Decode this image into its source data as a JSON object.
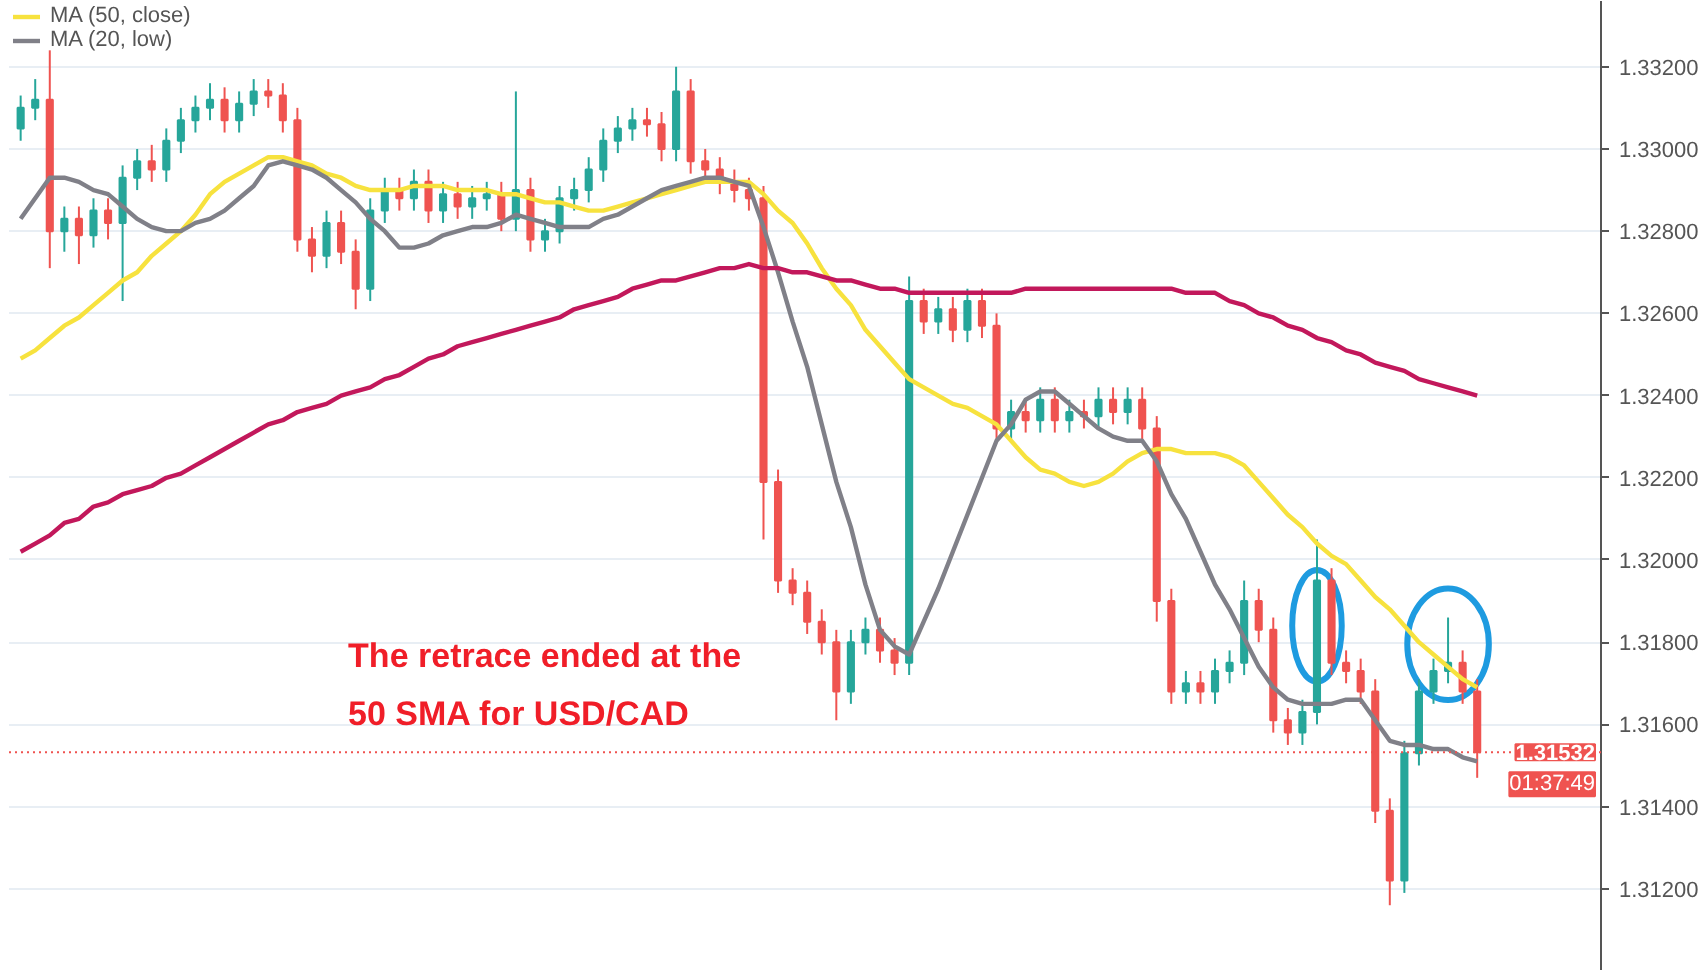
{
  "chart_data": {
    "type": "candlestick",
    "categories": [
      null,
      null,
      null,
      null,
      null,
      null,
      null,
      null,
      null,
      null,
      null,
      null,
      null,
      null,
      null,
      null,
      null,
      null,
      null,
      null,
      null,
      null,
      null,
      null,
      null,
      null,
      null,
      null,
      null,
      null,
      null,
      null,
      null,
      null,
      null,
      null,
      null,
      null,
      null,
      null,
      null,
      null,
      null,
      null,
      null,
      null,
      null,
      null,
      null,
      null,
      null,
      null,
      null,
      null,
      null,
      null,
      null,
      null,
      null,
      null,
      null,
      null,
      null,
      null,
      null,
      null,
      null,
      null,
      null,
      null,
      null,
      null,
      null,
      null,
      null,
      null,
      null,
      null,
      null,
      null,
      null,
      null,
      null,
      null,
      null,
      null,
      null,
      null,
      null,
      null,
      null,
      null,
      null,
      null,
      null,
      null,
      null,
      null,
      null,
      null,
      null
    ],
    "ohlc": [
      [
        1.3305,
        1.3313,
        1.3302,
        1.331
      ],
      [
        1.331,
        1.3317,
        1.3307,
        1.3312
      ],
      [
        1.3312,
        1.3324,
        1.3271,
        1.328
      ],
      [
        1.328,
        1.3286,
        1.3275,
        1.3283
      ],
      [
        1.3283,
        1.3286,
        1.3272,
        1.3279
      ],
      [
        1.3279,
        1.3288,
        1.3276,
        1.3285
      ],
      [
        1.3285,
        1.3288,
        1.3278,
        1.3282
      ],
      [
        1.3282,
        1.3296,
        1.3263,
        1.3293
      ],
      [
        1.3293,
        1.33,
        1.329,
        1.3297
      ],
      [
        1.3297,
        1.3301,
        1.3292,
        1.3295
      ],
      [
        1.3295,
        1.3305,
        1.3292,
        1.3302
      ],
      [
        1.3302,
        1.331,
        1.3299,
        1.3307
      ],
      [
        1.3307,
        1.3313,
        1.3304,
        1.331
      ],
      [
        1.331,
        1.3316,
        1.3307,
        1.3312
      ],
      [
        1.3312,
        1.3315,
        1.3304,
        1.3307
      ],
      [
        1.3307,
        1.3314,
        1.3304,
        1.3311
      ],
      [
        1.3311,
        1.3317,
        1.3308,
        1.3314
      ],
      [
        1.3314,
        1.3317,
        1.331,
        1.3313
      ],
      [
        1.3313,
        1.3316,
        1.3304,
        1.3307
      ],
      [
        1.3307,
        1.331,
        1.3275,
        1.3278
      ],
      [
        1.3278,
        1.3281,
        1.327,
        1.3274
      ],
      [
        1.3274,
        1.3285,
        1.3271,
        1.3282
      ],
      [
        1.3282,
        1.3285,
        1.3272,
        1.3275
      ],
      [
        1.3275,
        1.3278,
        1.3261,
        1.3266
      ],
      [
        1.3266,
        1.3288,
        1.3263,
        1.3285
      ],
      [
        1.3285,
        1.3293,
        1.3282,
        1.329
      ],
      [
        1.329,
        1.3293,
        1.3285,
        1.3288
      ],
      [
        1.3288,
        1.3295,
        1.3285,
        1.3292
      ],
      [
        1.3292,
        1.3295,
        1.3282,
        1.3285
      ],
      [
        1.3285,
        1.3292,
        1.3282,
        1.3289
      ],
      [
        1.3289,
        1.3292,
        1.3283,
        1.3286
      ],
      [
        1.3286,
        1.3291,
        1.3283,
        1.3288
      ],
      [
        1.3288,
        1.3292,
        1.3285,
        1.3289
      ],
      [
        1.3289,
        1.3292,
        1.328,
        1.3283
      ],
      [
        1.3283,
        1.3314,
        1.328,
        1.329
      ],
      [
        1.329,
        1.3293,
        1.3275,
        1.3278
      ],
      [
        1.3278,
        1.3283,
        1.3275,
        1.328
      ],
      [
        1.328,
        1.3291,
        1.3277,
        1.3288
      ],
      [
        1.3288,
        1.3293,
        1.3285,
        1.329
      ],
      [
        1.329,
        1.3298,
        1.3287,
        1.3295
      ],
      [
        1.3295,
        1.3305,
        1.3292,
        1.3302
      ],
      [
        1.3302,
        1.3308,
        1.3299,
        1.3305
      ],
      [
        1.3305,
        1.331,
        1.3302,
        1.3307
      ],
      [
        1.3307,
        1.331,
        1.3303,
        1.3306
      ],
      [
        1.3306,
        1.3309,
        1.3297,
        1.33
      ],
      [
        1.33,
        1.332,
        1.3297,
        1.3314
      ],
      [
        1.3314,
        1.3317,
        1.3294,
        1.3297
      ],
      [
        1.3297,
        1.33,
        1.3292,
        1.3295
      ],
      [
        1.3295,
        1.3298,
        1.3289,
        1.3292
      ],
      [
        1.3292,
        1.3295,
        1.3287,
        1.329
      ],
      [
        1.329,
        1.3293,
        1.3285,
        1.3288
      ],
      [
        1.3288,
        1.3291,
        1.3205,
        1.3219
      ],
      [
        1.3219,
        1.3222,
        1.3192,
        1.3195
      ],
      [
        1.3195,
        1.3198,
        1.3189,
        1.3192
      ],
      [
        1.3192,
        1.3195,
        1.3182,
        1.3185
      ],
      [
        1.3185,
        1.3188,
        1.3177,
        1.318
      ],
      [
        1.318,
        1.3183,
        1.3161,
        1.3168
      ],
      [
        1.3168,
        1.3183,
        1.3165,
        1.318
      ],
      [
        1.318,
        1.3186,
        1.3177,
        1.3183
      ],
      [
        1.3183,
        1.3186,
        1.3175,
        1.3178
      ],
      [
        1.3178,
        1.3181,
        1.3172,
        1.3175
      ],
      [
        1.3175,
        1.3269,
        1.3172,
        1.3263
      ],
      [
        1.3263,
        1.3266,
        1.3255,
        1.3258
      ],
      [
        1.3258,
        1.3264,
        1.3255,
        1.3261
      ],
      [
        1.3261,
        1.3264,
        1.3253,
        1.3256
      ],
      [
        1.3256,
        1.3266,
        1.3253,
        1.3263
      ],
      [
        1.3263,
        1.3266,
        1.3254,
        1.3257
      ],
      [
        1.3257,
        1.326,
        1.3229,
        1.3232
      ],
      [
        1.3232,
        1.3239,
        1.3229,
        1.3236
      ],
      [
        1.3236,
        1.3239,
        1.3231,
        1.3234
      ],
      [
        1.3234,
        1.3242,
        1.3231,
        1.3239
      ],
      [
        1.3239,
        1.3242,
        1.3231,
        1.3234
      ],
      [
        1.3234,
        1.3239,
        1.3231,
        1.3236
      ],
      [
        1.3236,
        1.3239,
        1.3232,
        1.3235
      ],
      [
        1.3235,
        1.3242,
        1.3232,
        1.3239
      ],
      [
        1.3239,
        1.3242,
        1.3233,
        1.3236
      ],
      [
        1.3236,
        1.3242,
        1.3233,
        1.3239
      ],
      [
        1.3239,
        1.3242,
        1.3229,
        1.3232
      ],
      [
        1.3232,
        1.3235,
        1.3185,
        1.319
      ],
      [
        1.319,
        1.3193,
        1.3165,
        1.3168
      ],
      [
        1.3168,
        1.3173,
        1.3165,
        1.317
      ],
      [
        1.317,
        1.3173,
        1.3165,
        1.3168
      ],
      [
        1.3168,
        1.3176,
        1.3165,
        1.3173
      ],
      [
        1.3173,
        1.3178,
        1.317,
        1.3175
      ],
      [
        1.3175,
        1.3195,
        1.3172,
        1.319
      ],
      [
        1.319,
        1.3193,
        1.318,
        1.3183
      ],
      [
        1.3183,
        1.3186,
        1.3158,
        1.3161
      ],
      [
        1.3161,
        1.3164,
        1.3155,
        1.3158
      ],
      [
        1.3158,
        1.3166,
        1.3155,
        1.3163
      ],
      [
        1.3163,
        1.3205,
        1.316,
        1.3195
      ],
      [
        1.3195,
        1.3198,
        1.3172,
        1.3175
      ],
      [
        1.3175,
        1.3178,
        1.317,
        1.3173
      ],
      [
        1.3173,
        1.3176,
        1.3165,
        1.3168
      ],
      [
        1.3168,
        1.3171,
        1.3136,
        1.3139
      ],
      [
        1.3139,
        1.3142,
        1.3116,
        1.3122
      ],
      [
        1.3122,
        1.3156,
        1.3119,
        1.3153
      ],
      [
        1.3153,
        1.3171,
        1.315,
        1.3168
      ],
      [
        1.3168,
        1.3176,
        1.3165,
        1.3173
      ],
      [
        1.3173,
        1.3186,
        1.317,
        1.3175
      ],
      [
        1.3175,
        1.3178,
        1.3165,
        1.3168
      ],
      [
        1.3168,
        1.3171,
        1.3147,
        1.31532
      ]
    ],
    "series": [
      {
        "name": "MA (50, close)",
        "type": "line",
        "color": "#f7e23e",
        "values": [
          1.3249,
          1.3251,
          1.3254,
          1.3257,
          1.3259,
          1.3262,
          1.3265,
          1.3268,
          1.327,
          1.3274,
          1.3277,
          1.328,
          1.3284,
          1.3289,
          1.3292,
          1.3294,
          1.3296,
          1.3298,
          1.3298,
          1.3297,
          1.3296,
          1.3294,
          1.3293,
          1.3291,
          1.329,
          1.329,
          1.329,
          1.3291,
          1.3291,
          1.3291,
          1.329,
          1.329,
          1.329,
          1.3289,
          1.3289,
          1.3288,
          1.3287,
          1.3287,
          1.3286,
          1.3285,
          1.3285,
          1.3286,
          1.3287,
          1.3288,
          1.3289,
          1.329,
          1.3291,
          1.3292,
          1.3292,
          1.3292,
          1.3292,
          1.3289,
          1.3285,
          1.3282,
          1.3277,
          1.3271,
          1.3266,
          1.3262,
          1.3256,
          1.3252,
          1.3248,
          1.3244,
          1.3242,
          1.324,
          1.3238,
          1.3237,
          1.3235,
          1.3233,
          1.3229,
          1.3225,
          1.3222,
          1.3221,
          1.3219,
          1.3218,
          1.3219,
          1.3221,
          1.3224,
          1.3226,
          1.3227,
          1.3227,
          1.3226,
          1.3226,
          1.3226,
          1.3225,
          1.3223,
          1.3219,
          1.3215,
          1.3211,
          1.3208,
          1.3204,
          1.3201,
          1.3199,
          1.3195,
          1.3191,
          1.3188,
          1.3184,
          1.318,
          1.3177,
          1.3174,
          1.3171,
          1.3169
        ]
      },
      {
        "name": "MA (20, low)",
        "type": "line",
        "color": "#808088",
        "values": [
          1.3283,
          1.3288,
          1.3293,
          1.3293,
          1.3292,
          1.329,
          1.3289,
          1.3286,
          1.3283,
          1.3281,
          1.328,
          1.328,
          1.3282,
          1.3283,
          1.3285,
          1.3288,
          1.3291,
          1.3296,
          1.3297,
          1.3296,
          1.3295,
          1.3293,
          1.329,
          1.3287,
          1.3283,
          1.328,
          1.3276,
          1.3276,
          1.3277,
          1.3279,
          1.328,
          1.3281,
          1.3281,
          1.3282,
          1.3284,
          1.3283,
          1.3282,
          1.3281,
          1.3281,
          1.3281,
          1.3283,
          1.3284,
          1.3286,
          1.3288,
          1.329,
          1.3291,
          1.3292,
          1.3293,
          1.3293,
          1.3292,
          1.3291,
          1.3281,
          1.327,
          1.3258,
          1.3247,
          1.3233,
          1.3219,
          1.3208,
          1.3194,
          1.3183,
          1.3179,
          1.3177,
          1.3185,
          1.3193,
          1.3202,
          1.3211,
          1.322,
          1.3229,
          1.3233,
          1.3239,
          1.3241,
          1.3241,
          1.3238,
          1.3235,
          1.3232,
          1.323,
          1.3229,
          1.3229,
          1.3224,
          1.3216,
          1.321,
          1.3202,
          1.3194,
          1.3188,
          1.3181,
          1.3174,
          1.3169,
          1.3166,
          1.3165,
          1.3165,
          1.3165,
          1.3166,
          1.3166,
          1.3161,
          1.3156,
          1.3155,
          1.3155,
          1.3154,
          1.3154,
          1.3152,
          1.3151
        ]
      },
      {
        "type": "line",
        "color": "#c2185b",
        "values": [
          1.3202,
          1.3204,
          1.3206,
          1.3209,
          1.321,
          1.3213,
          1.3214,
          1.3216,
          1.3217,
          1.3218,
          1.322,
          1.3221,
          1.3223,
          1.3225,
          1.3227,
          1.3229,
          1.3231,
          1.3233,
          1.3234,
          1.3236,
          1.3237,
          1.3238,
          1.324,
          1.3241,
          1.3242,
          1.3244,
          1.3245,
          1.3247,
          1.3249,
          1.325,
          1.3252,
          1.3253,
          1.3254,
          1.3255,
          1.3256,
          1.3257,
          1.3258,
          1.3259,
          1.3261,
          1.3262,
          1.3263,
          1.3264,
          1.3266,
          1.3267,
          1.3268,
          1.3268,
          1.3269,
          1.327,
          1.3271,
          1.3271,
          1.3272,
          1.3271,
          1.3271,
          1.327,
          1.327,
          1.3269,
          1.3268,
          1.3268,
          1.3267,
          1.3266,
          1.3266,
          1.3265,
          1.3265,
          1.3265,
          1.3265,
          1.3265,
          1.3265,
          1.3265,
          1.3265,
          1.3266,
          1.3266,
          1.3266,
          1.3266,
          1.3266,
          1.3266,
          1.3266,
          1.3266,
          1.3266,
          1.3266,
          1.3266,
          1.3265,
          1.3265,
          1.3265,
          1.3263,
          1.3262,
          1.326,
          1.3259,
          1.3257,
          1.3256,
          1.3254,
          1.3253,
          1.3251,
          1.325,
          1.3248,
          1.3247,
          1.3246,
          1.3244,
          1.3243,
          1.3242,
          1.3241,
          1.324
        ]
      }
    ],
    "ylim": [
      1.31,
      1.3336
    ],
    "yticks": [
      {
        "value": 1.312,
        "label": "1.31200"
      },
      {
        "value": 1.314,
        "label": "1.31400"
      },
      {
        "value": 1.316,
        "label": "1.31600"
      },
      {
        "value": 1.318,
        "label": "1.31800"
      },
      {
        "value": 1.32,
        "label": "1.32000"
      },
      {
        "value": 1.322,
        "label": "1.32200"
      },
      {
        "value": 1.324,
        "label": "1.32400"
      },
      {
        "value": 1.326,
        "label": "1.32600"
      },
      {
        "value": 1.328,
        "label": "1.32800"
      },
      {
        "value": 1.33,
        "label": "1.33000"
      },
      {
        "value": 1.332,
        "label": "1.33200"
      }
    ],
    "ref_lines": [
      {
        "axis": "y",
        "value": 1.31532,
        "label": "1.31532",
        "color": "#ef5350",
        "line_style": "dotted"
      }
    ],
    "annotations": [
      "The retrace ended at the",
      "50 SMA for USD/CAD",
      "01:37:49"
    ],
    "grid": "y",
    "legend": "top left",
    "tick_labels": "y"
  }
}
